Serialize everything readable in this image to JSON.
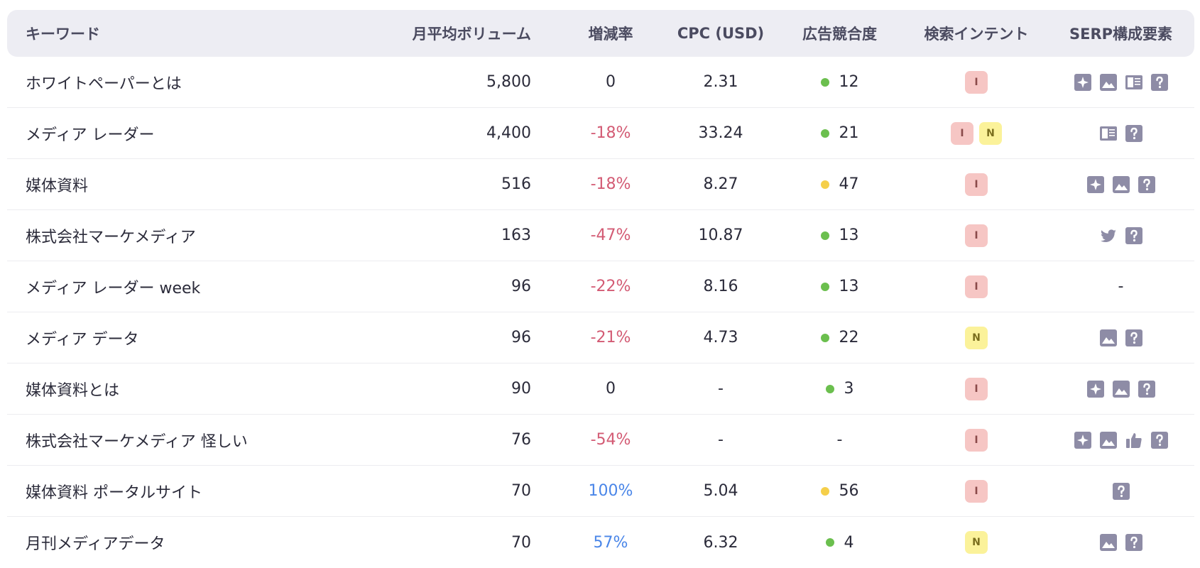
{
  "columns": {
    "keyword": "キーワード",
    "volume": "月平均ボリューム",
    "trend": "増減率",
    "cpc": "CPC (USD)",
    "competition": "広告競合度",
    "intent": "検索インテント",
    "serp": "SERP構成要素"
  },
  "colors": {
    "negative": "#d35b74",
    "positive": "#4a86e8",
    "competition_green": "#6bbf4e",
    "competition_yellow": "#f5cf4a",
    "intent_I_bg": "#f6c6c4",
    "intent_N_bg": "#fbf29a",
    "header_bg": "#ededf3",
    "icon_gray": "#8e8ca6"
  },
  "rows": [
    {
      "keyword": "ホワイトペーパーとは",
      "volume": "5,800",
      "trend": "0",
      "trend_type": "neutral",
      "cpc": "2.31",
      "competition": "12",
      "competition_color": "green",
      "intent": [
        "I"
      ],
      "serp": [
        "sparkle-icon",
        "image-icon",
        "article-icon",
        "question-icon"
      ]
    },
    {
      "keyword": "メディア レーダー",
      "volume": "4,400",
      "trend": "-18%",
      "trend_type": "neg",
      "cpc": "33.24",
      "competition": "21",
      "competition_color": "green",
      "intent": [
        "I",
        "N"
      ],
      "serp": [
        "article-icon",
        "question-icon"
      ]
    },
    {
      "keyword": "媒体資料",
      "volume": "516",
      "trend": "-18%",
      "trend_type": "neg",
      "cpc": "8.27",
      "competition": "47",
      "competition_color": "yellow",
      "intent": [
        "I"
      ],
      "serp": [
        "sparkle-icon",
        "image-icon",
        "question-icon"
      ]
    },
    {
      "keyword": "株式会社マーケメディア",
      "volume": "163",
      "trend": "-47%",
      "trend_type": "neg",
      "cpc": "10.87",
      "competition": "13",
      "competition_color": "green",
      "intent": [
        "I"
      ],
      "serp": [
        "twitter-icon",
        "question-icon"
      ]
    },
    {
      "keyword": "メディア レーダー week",
      "volume": "96",
      "trend": "-22%",
      "trend_type": "neg",
      "cpc": "8.16",
      "competition": "13",
      "competition_color": "green",
      "intent": [
        "I"
      ],
      "serp": [],
      "serp_empty": "-"
    },
    {
      "keyword": "メディア データ",
      "volume": "96",
      "trend": "-21%",
      "trend_type": "neg",
      "cpc": "4.73",
      "competition": "22",
      "competition_color": "green",
      "intent": [
        "N"
      ],
      "serp": [
        "image-icon",
        "question-icon"
      ]
    },
    {
      "keyword": "媒体資料とは",
      "volume": "90",
      "trend": "0",
      "trend_type": "neutral",
      "cpc": "-",
      "competition": "3",
      "competition_color": "green",
      "intent": [
        "I"
      ],
      "serp": [
        "sparkle-icon",
        "image-icon",
        "question-icon"
      ]
    },
    {
      "keyword": "株式会社マーケメディア 怪しい",
      "volume": "76",
      "trend": "-54%",
      "trend_type": "neg",
      "cpc": "-",
      "competition": "-",
      "competition_color": "none",
      "intent": [
        "I"
      ],
      "serp": [
        "sparkle-icon",
        "image-icon",
        "thumbs-up-icon",
        "question-icon"
      ]
    },
    {
      "keyword": "媒体資料 ポータルサイト",
      "volume": "70",
      "trend": "100%",
      "trend_type": "pos",
      "cpc": "5.04",
      "competition": "56",
      "competition_color": "yellow",
      "intent": [
        "I"
      ],
      "serp": [
        "question-icon"
      ]
    },
    {
      "keyword": "月刊メディアデータ",
      "volume": "70",
      "trend": "57%",
      "trend_type": "pos",
      "cpc": "6.32",
      "competition": "4",
      "competition_color": "green",
      "intent": [
        "N"
      ],
      "serp": [
        "image-icon",
        "question-icon"
      ]
    }
  ]
}
